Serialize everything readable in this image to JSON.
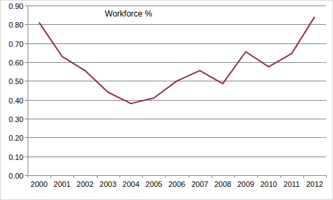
{
  "chart_data": {
    "type": "line",
    "title": "Workforce %",
    "categories": [
      "2000",
      "2001",
      "2002",
      "2003",
      "2004",
      "2005",
      "2006",
      "2007",
      "2008",
      "2009",
      "2010",
      "2011",
      "2012"
    ],
    "values": [
      0.81,
      0.63,
      0.555,
      0.44,
      0.38,
      0.41,
      0.5,
      0.555,
      0.485,
      0.655,
      0.575,
      0.645,
      0.84
    ],
    "color": "#8e2d56",
    "ylim": [
      0,
      0.9
    ],
    "yticks": [
      {
        "value": 0,
        "label": "0.00"
      },
      {
        "value": 0.1,
        "label": "0.10"
      },
      {
        "value": 0.2,
        "label": "0.20"
      },
      {
        "value": 0.3,
        "label": "0.30"
      },
      {
        "value": 0.4,
        "label": "0.40"
      },
      {
        "value": 0.5,
        "label": "0.50"
      },
      {
        "value": 0.6,
        "label": "0.60"
      },
      {
        "value": 0.7,
        "label": "0.70"
      },
      {
        "value": 0.8,
        "label": "0.80"
      },
      {
        "value": 0.9,
        "label": "0.90"
      }
    ],
    "grid": true
  }
}
